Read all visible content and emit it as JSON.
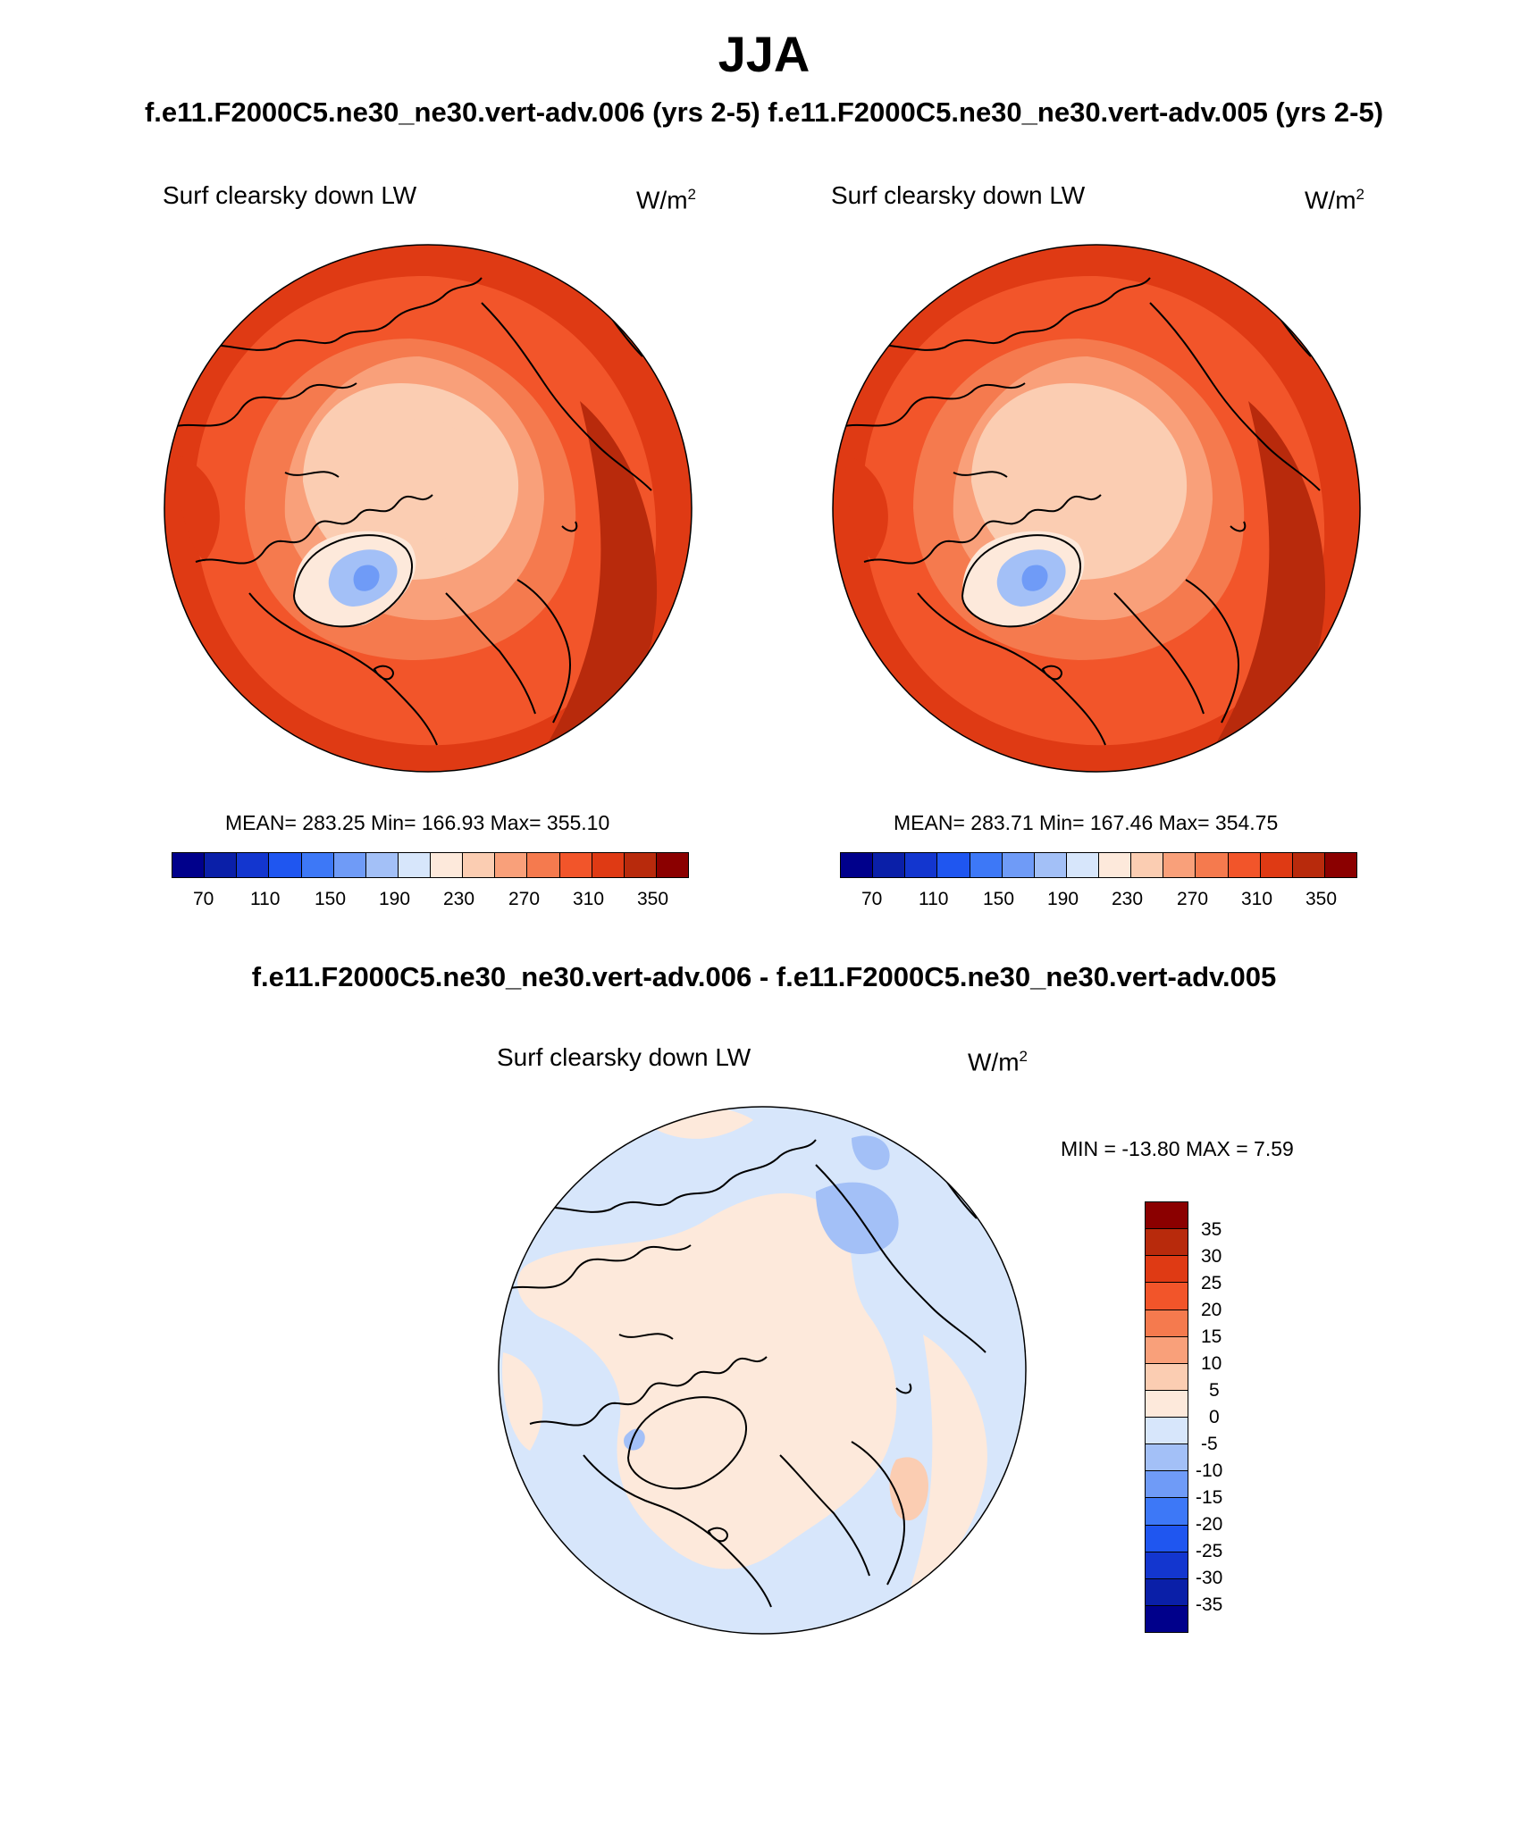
{
  "figure": {
    "title": "JJA",
    "case_title": "f.e11.F2000C5.ne30_ne30.vert-adv.006 (yrs 2-5)  f.e11.F2000C5.ne30_ne30.vert-adv.005 (yrs 2-5)",
    "diff_title": "f.e11.F2000C5.ne30_ne30.vert-adv.006 - f.e11.F2000C5.ne30_ne30.vert-adv.005"
  },
  "panels": [
    {
      "variable": "Surf clearsky down LW",
      "units": "W/m",
      "units_sup": "2",
      "stats": "MEAN= 283.25  Min= 166.93  Max= 355.10"
    },
    {
      "variable": "Surf clearsky down LW",
      "units": "W/m",
      "units_sup": "2",
      "stats": "MEAN= 283.71  Min= 167.46  Max= 354.75"
    }
  ],
  "diff_panel": {
    "variable": "Surf clearsky down LW",
    "units": "W/m",
    "units_sup": "2",
    "stats": "MIN = -13.80 MAX =   7.59"
  },
  "colorbar_abs": {
    "colors": [
      "#00008b",
      "#0a1fa8",
      "#1336cf",
      "#1f56f0",
      "#3d78f7",
      "#6f9bf7",
      "#a3c0f7",
      "#d7e6fb",
      "#fde9db",
      "#fbcdb2",
      "#f9a07a",
      "#f57a4e",
      "#f2552a",
      "#df3a14",
      "#b82a0c",
      "#8b0000"
    ],
    "tick_labels": [
      "70",
      "110",
      "150",
      "190",
      "230",
      "270",
      "310",
      "350"
    ]
  },
  "colorbar_diff": {
    "colors": [
      "#8b0000",
      "#b82a0c",
      "#df3a14",
      "#f2552a",
      "#f57a4e",
      "#f9a07a",
      "#fbcdb2",
      "#fde9db",
      "#d7e6fb",
      "#a3c0f7",
      "#6f9bf7",
      "#3d78f7",
      "#1f56f0",
      "#1336cf",
      "#0a1fa8",
      "#00008b"
    ],
    "tick_labels": [
      "35",
      "30",
      "25",
      "20",
      "15",
      "10",
      "5",
      "0",
      "-5",
      "-10",
      "-15",
      "-20",
      "-25",
      "-30",
      "-35"
    ]
  }
}
